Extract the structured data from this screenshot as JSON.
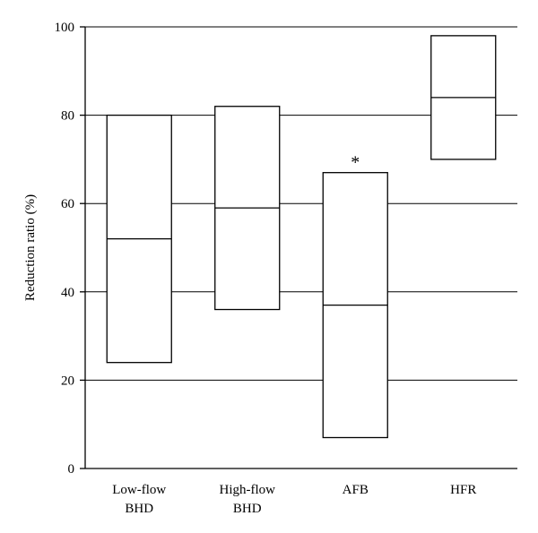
{
  "chart_data": {
    "type": "box",
    "title": "",
    "xlabel": "",
    "ylabel": "Reduction ratio (%)",
    "ylim": [
      0,
      100
    ],
    "yticks": [
      0,
      20,
      40,
      60,
      80,
      100
    ],
    "grid": "horizontal",
    "categories": [
      {
        "lines": [
          "Low-flow",
          "BHD"
        ]
      },
      {
        "lines": [
          "High-flow",
          "BHD"
        ]
      },
      {
        "lines": [
          "AFB"
        ]
      },
      {
        "lines": [
          "HFR"
        ]
      }
    ],
    "boxes": [
      {
        "low": 24,
        "median": 52,
        "high": 80,
        "annotation": ""
      },
      {
        "low": 36,
        "median": 59,
        "high": 82,
        "annotation": ""
      },
      {
        "low": 7,
        "median": 37,
        "high": 67,
        "annotation": "*"
      },
      {
        "low": 70,
        "median": 84,
        "high": 98,
        "annotation": ""
      }
    ]
  }
}
